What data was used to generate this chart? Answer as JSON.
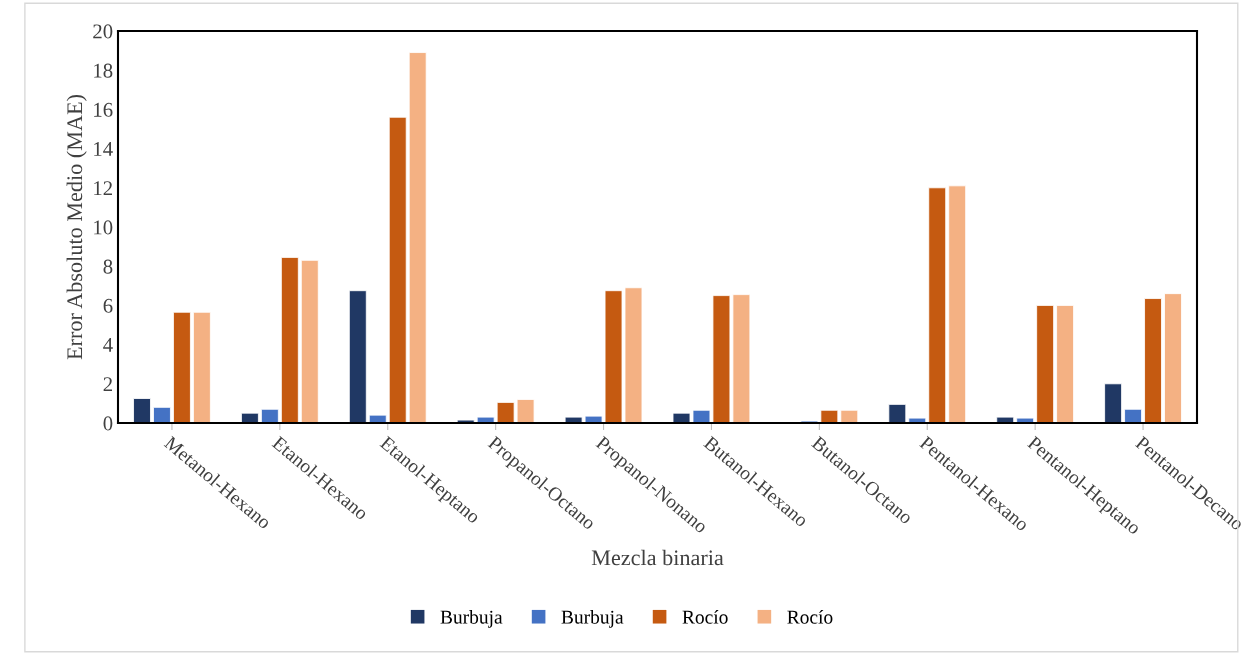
{
  "chart_data": {
    "type": "bar",
    "xlabel": "Mezcla binaria",
    "ylabel": "Error Absoluto Medio (MAE)",
    "categories": [
      "Metanol-Hexano",
      "Etanol-Hexano",
      "Etanol-Heptano",
      "Propanol-Octano",
      "Propanol-Nonano",
      "Butanol-Hexano",
      "Butanol-Octano",
      "Pentanol-Hexano",
      "Pentanol-Heptano",
      "Pentanol-Decano"
    ],
    "series": [
      {
        "name": "Burbuja",
        "color": "#203864",
        "values": [
          1.25,
          0.5,
          6.75,
          0.15,
          0.3,
          0.5,
          0.02,
          0.95,
          0.3,
          2.0
        ]
      },
      {
        "name": "Burbuja",
        "color": "#4472c4",
        "values": [
          0.8,
          0.7,
          0.4,
          0.3,
          0.35,
          0.65,
          0.1,
          0.25,
          0.25,
          0.7
        ]
      },
      {
        "name": "Rocío",
        "color": "#c55a11",
        "values": [
          5.65,
          8.45,
          15.6,
          1.05,
          6.75,
          6.5,
          0.65,
          12.0,
          6.0,
          6.35
        ]
      },
      {
        "name": "Rocío",
        "color": "#f4b183",
        "values": [
          5.65,
          8.3,
          18.9,
          1.2,
          6.9,
          6.55,
          0.65,
          12.1,
          6.0,
          6.6
        ]
      }
    ],
    "ylim": [
      0,
      20
    ],
    "yticks": [
      0,
      2,
      4,
      6,
      8,
      10,
      12,
      14,
      16,
      18,
      20
    ],
    "grid": false,
    "legend": "bottom"
  }
}
